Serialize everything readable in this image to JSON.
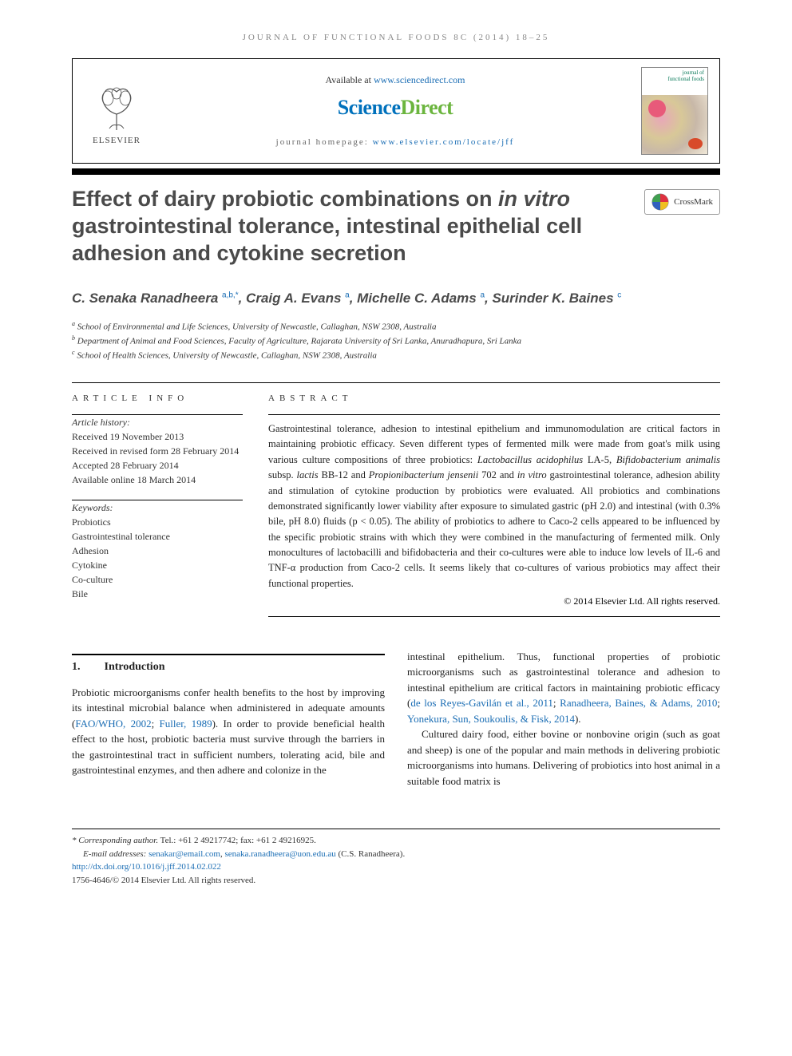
{
  "running_head": "JOURNAL OF FUNCTIONAL FOODS 8C (2014) 18–25",
  "header": {
    "available_prefix": "Available at ",
    "available_url": "www.sciencedirect.com",
    "brand_sci": "Science",
    "brand_direct": "Direct",
    "homepage_prefix": "journal homepage: ",
    "homepage_url": "www.elsevier.com/locate/jff",
    "elsevier_label": "ELSEVIER",
    "cover_title_line1": "journal of",
    "cover_title_line2": "functional foods"
  },
  "crossmark_label": "CrossMark",
  "title_html": "Effect of dairy probiotic combinations on <em>in vitro</em> gastrointestinal tolerance, intestinal epithelial cell adhesion and cytokine secretion",
  "authors_html": "C. Senaka Ranadheera <sup>a,b,*</sup>, Craig A. Evans <sup>a</sup>, Michelle C. Adams <sup>a</sup>, Surinder K. Baines <sup>c</sup>",
  "affiliations": [
    {
      "sup": "a",
      "text": "School of Environmental and Life Sciences, University of Newcastle, Callaghan, NSW 2308, Australia"
    },
    {
      "sup": "b",
      "text": "Department of Animal and Food Sciences, Faculty of Agriculture, Rajarata University of Sri Lanka, Anuradhapura, Sri Lanka"
    },
    {
      "sup": "c",
      "text": "School of Health Sciences, University of Newcastle, Callaghan, NSW 2308, Australia"
    }
  ],
  "article_info": {
    "heading": "ARTICLE INFO",
    "history_label": "Article history:",
    "history": [
      "Received 19 November 2013",
      "Received in revised form 28 February 2014",
      "Accepted 28 February 2014",
      "Available online 18 March 2014"
    ],
    "keywords_label": "Keywords:",
    "keywords": [
      "Probiotics",
      "Gastrointestinal tolerance",
      "Adhesion",
      "Cytokine",
      "Co-culture",
      "Bile"
    ]
  },
  "abstract": {
    "heading": "ABSTRACT",
    "text_html": "Gastrointestinal tolerance, adhesion to intestinal epithelium and immunomodulation are critical factors in maintaining probiotic efficacy. Seven different types of fermented milk were made from goat's milk using various culture compositions of three probiotics: <em>Lactobacillus acidophilus</em> LA-5, <em>Bifidobacterium animalis</em> subsp. <em>lactis</em> BB-12 and <em>Propionibacterium jensenii</em> 702 and <em>in vitro</em> gastrointestinal tolerance, adhesion ability and stimulation of cytokine production by probiotics were evaluated. All probiotics and combinations demonstrated significantly lower viability after exposure to simulated gastric (pH 2.0) and intestinal (with 0.3% bile, pH 8.0) fluids (p < 0.05). The ability of probiotics to adhere to Caco-2 cells appeared to be influenced by the specific probiotic strains with which they were combined in the manufacturing of fermented milk. Only monocultures of lactobacilli and bifidobacteria and their co-cultures were able to induce low levels of IL-6 and TNF-α production from Caco-2 cells. It seems likely that co-cultures of various probiotics may affect their functional properties.",
    "copyright": "© 2014 Elsevier Ltd. All rights reserved."
  },
  "section1": {
    "num": "1.",
    "title": "Introduction",
    "para1_html": "Probiotic microorganisms confer health benefits to the host by improving its intestinal microbial balance when administered in adequate amounts (<a href='#'>FAO/WHO, 2002</a>; <a href='#'>Fuller, 1989</a>). In order to provide beneficial health effect to the host, probiotic bacteria must survive through the barriers in the gastrointestinal tract in sufficient numbers, tolerating acid, bile and gastrointestinal enzymes, and then adhere and colonize in the",
    "para1b_html": "intestinal epithelium. Thus, functional properties of probiotic microorganisms such as gastrointestinal tolerance and adhesion to intestinal epithelium are critical factors in maintaining probiotic efficacy (<a href='#'>de los Reyes-Gavilán et al., 2011</a>; <a href='#'>Ranadheera, Baines, & Adams, 2010</a>; <a href='#'>Yonekura, Sun, Soukoulis, & Fisk, 2014</a>).",
    "para2_html": "Cultured dairy food, either bovine or nonbovine origin (such as goat and sheep) is one of the popular and main methods in delivering probiotic microorganisms into humans. Delivering of probiotics into host animal in a suitable food matrix is"
  },
  "footnotes": {
    "corr_label": "* Corresponding author.",
    "corr_text": " Tel.: +61 2 49217742; fax: +61 2 49216925.",
    "email_label": "E-mail addresses: ",
    "email1": "senakar@email.com",
    "email_sep": ", ",
    "email2": "senaka.ranadheera@uon.edu.au",
    "email_suffix": " (C.S. Ranadheera).",
    "doi": "http://dx.doi.org/10.1016/j.jff.2014.02.022",
    "issn_line": "1756-4646/© 2014 Elsevier Ltd. All rights reserved."
  },
  "colors": {
    "link": "#1a6db4",
    "brand_green": "#6bb53e",
    "brand_blue": "#0071bc",
    "title_grey": "#4a4a4a"
  }
}
